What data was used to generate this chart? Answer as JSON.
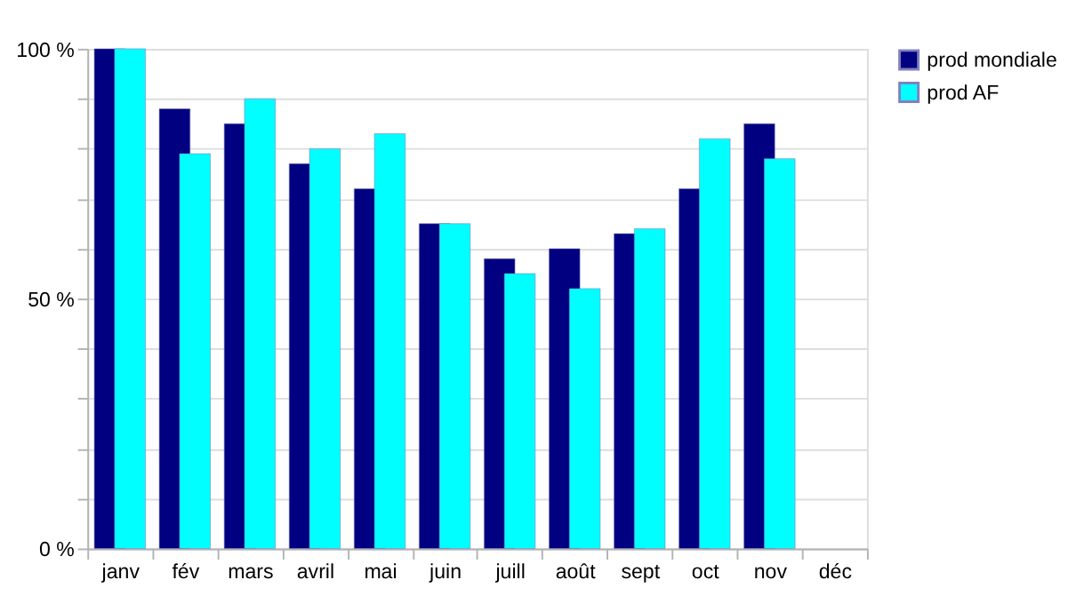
{
  "chart_data": {
    "type": "bar",
    "categories": [
      "janv",
      "fév",
      "mars",
      "avril",
      "mai",
      "juin",
      "juill",
      "août",
      "sept",
      "oct",
      "nov",
      "déc"
    ],
    "series": [
      {
        "name": "prod mondiale",
        "color": "#000080",
        "values": [
          100,
          88,
          85,
          77,
          72,
          65,
          58,
          60,
          63,
          72,
          85,
          null
        ]
      },
      {
        "name": "prod AF",
        "color": "#00ffff",
        "values": [
          100,
          79,
          90,
          80,
          83,
          65,
          55,
          52,
          64,
          82,
          78,
          null
        ]
      }
    ],
    "ylim": [
      0,
      100
    ],
    "yticks": [
      {
        "value": 0,
        "label": "0 %"
      },
      {
        "value": 10,
        "label": null
      },
      {
        "value": 20,
        "label": null
      },
      {
        "value": 30,
        "label": null
      },
      {
        "value": 40,
        "label": null
      },
      {
        "value": 50,
        "label": "50 %"
      },
      {
        "value": 60,
        "label": null
      },
      {
        "value": 70,
        "label": null
      },
      {
        "value": 80,
        "label": null
      },
      {
        "value": 90,
        "label": null
      },
      {
        "value": 100,
        "label": "100 %"
      }
    ],
    "grid": "y",
    "legend": "right"
  }
}
